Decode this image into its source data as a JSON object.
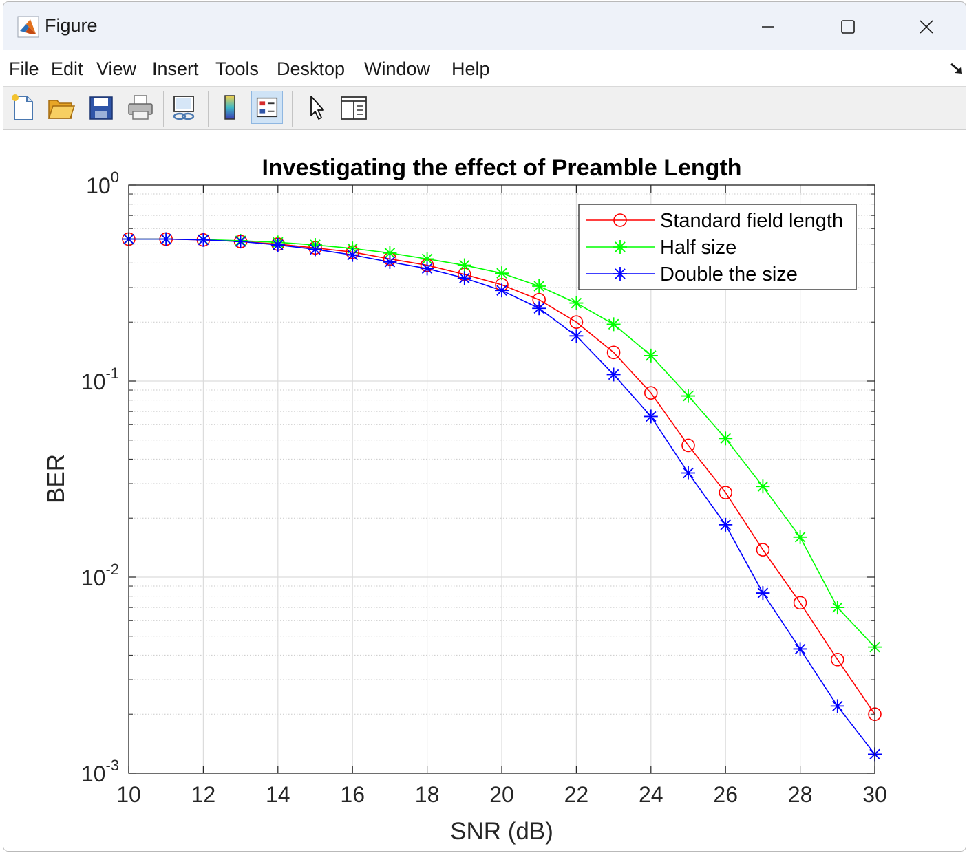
{
  "window": {
    "title": "Figure",
    "controls": [
      "minimize",
      "maximize",
      "close"
    ]
  },
  "menu": {
    "items": [
      "File",
      "Edit",
      "View",
      "Insert",
      "Tools",
      "Desktop",
      "Window",
      "Help"
    ]
  },
  "toolbar": {
    "buttons": [
      {
        "name": "new-figure-icon"
      },
      {
        "name": "open-file-icon"
      },
      {
        "name": "save-icon"
      },
      {
        "name": "print-icon"
      },
      {
        "name": "link-plot-icon"
      },
      {
        "name": "colorbar-icon"
      },
      {
        "name": "legend-icon",
        "active": true
      },
      {
        "name": "edit-plot-pointer-icon"
      },
      {
        "name": "property-inspector-icon"
      }
    ]
  },
  "chart_data": {
    "type": "line",
    "title": "Investigating the effect of Preamble Length",
    "xlabel": "SNR (dB)",
    "ylabel": "BER",
    "xlim": [
      10,
      30
    ],
    "ylim": [
      0.001,
      1
    ],
    "yscale": "log",
    "xticks": [
      "10",
      "12",
      "14",
      "16",
      "18",
      "20",
      "22",
      "24",
      "26",
      "28",
      "30"
    ],
    "yticks": [
      {
        "base": "10",
        "exp": "0"
      },
      {
        "base": "10",
        "exp": "-1"
      },
      {
        "base": "10",
        "exp": "-2"
      },
      {
        "base": "10",
        "exp": "-3"
      }
    ],
    "grid": true,
    "legend": "top-right",
    "x": [
      10,
      11,
      12,
      13,
      14,
      15,
      16,
      17,
      18,
      19,
      20,
      21,
      22,
      23,
      24,
      25,
      26,
      27,
      28,
      29,
      30
    ],
    "series": [
      {
        "name": "Standard field length",
        "color": "#ff0000",
        "marker": "circle",
        "values": [
          0.53,
          0.53,
          0.525,
          0.515,
          0.5,
          0.478,
          0.455,
          0.42,
          0.39,
          0.35,
          0.31,
          0.26,
          0.2,
          0.14,
          0.087,
          0.047,
          0.027,
          0.0138,
          0.0074,
          0.0038,
          0.002
        ]
      },
      {
        "name": "Half size",
        "color": "#00ff00",
        "marker": "asterisk",
        "values": [
          0.53,
          0.53,
          0.527,
          0.52,
          0.51,
          0.495,
          0.475,
          0.45,
          0.42,
          0.39,
          0.355,
          0.305,
          0.25,
          0.195,
          0.135,
          0.084,
          0.051,
          0.029,
          0.016,
          0.007,
          0.0044
        ]
      },
      {
        "name": "Double the size",
        "color": "#0000ff",
        "marker": "asterisk",
        "values": [
          0.53,
          0.53,
          0.525,
          0.515,
          0.495,
          0.47,
          0.44,
          0.405,
          0.375,
          0.335,
          0.29,
          0.235,
          0.17,
          0.108,
          0.066,
          0.034,
          0.0185,
          0.0083,
          0.0043,
          0.0022,
          0.00125
        ]
      }
    ]
  }
}
